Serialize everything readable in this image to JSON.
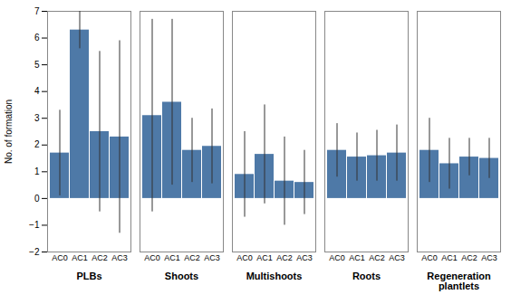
{
  "chart_data": {
    "type": "bar",
    "categories": [
      "PLBs",
      "Shoots",
      "Multishoots",
      "Roots",
      "Regeneration\nplantlets"
    ],
    "series": [
      {
        "name": "AC0",
        "values": [
          1.7,
          3.1,
          0.9,
          1.8,
          1.8
        ],
        "errors": [
          1.6,
          3.6,
          1.6,
          1.0,
          1.2
        ]
      },
      {
        "name": "AC1",
        "values": [
          6.3,
          3.6,
          1.65,
          1.55,
          1.3
        ],
        "errors": [
          0.7,
          3.1,
          1.85,
          0.9,
          0.95
        ]
      },
      {
        "name": "AC2",
        "values": [
          2.5,
          1.8,
          0.65,
          1.6,
          1.55
        ],
        "errors": [
          3.0,
          1.2,
          1.65,
          0.95,
          0.7
        ]
      },
      {
        "name": "AC3",
        "values": [
          2.3,
          1.95,
          0.6,
          1.7,
          1.5
        ],
        "errors": [
          3.6,
          1.4,
          1.2,
          1.05,
          0.75
        ]
      }
    ],
    "color": "#4e79a7",
    "ylabel": "No. of formation",
    "ylim": [
      -2,
      7
    ],
    "yticks": [
      -2,
      -1,
      0,
      1,
      2,
      3,
      4,
      5,
      6,
      7
    ],
    "grid": false
  }
}
